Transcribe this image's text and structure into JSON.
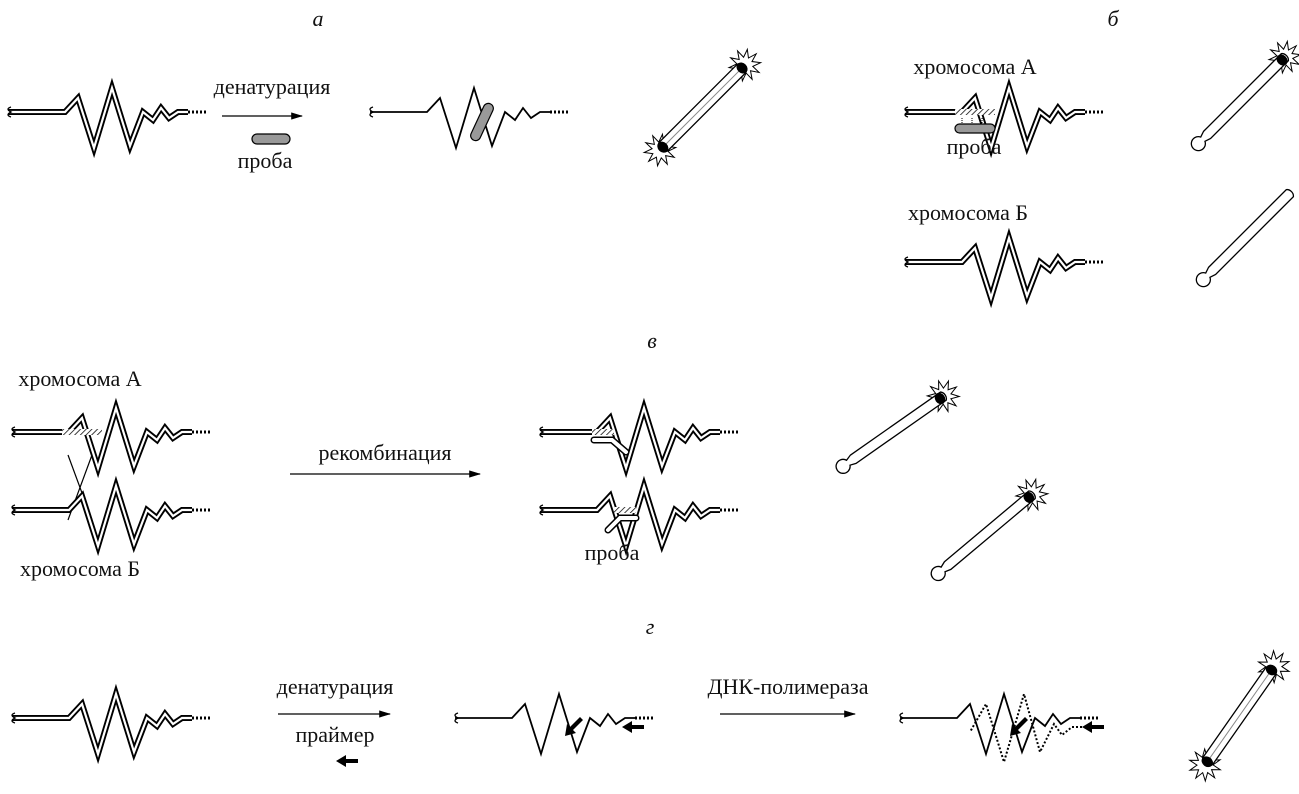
{
  "panels": {
    "a": {
      "label": "а",
      "denaturation": "денатурация",
      "probe": "проба"
    },
    "b": {
      "label": "б",
      "chromosome_a": "хромосома А",
      "probe": "проба",
      "chromosome_b": "хромосома Б"
    },
    "v": {
      "label": "в",
      "chromosome_a": "хромосома А",
      "recombination": "рекомбинация",
      "chromosome_b": "хромосома Б",
      "probe": "проба"
    },
    "g": {
      "label": "г",
      "denaturation": "денатурация",
      "primer": "праймер",
      "polymerase": "ДНК-полимераза"
    }
  }
}
